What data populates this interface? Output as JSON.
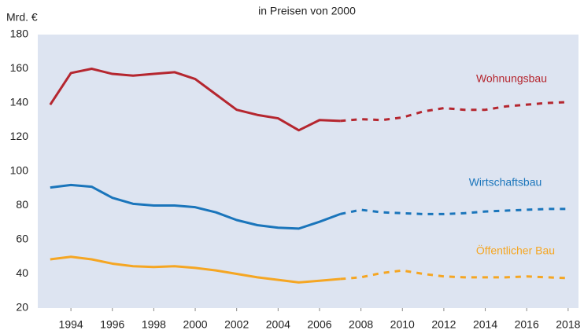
{
  "chart_data": {
    "type": "line",
    "title": "in Preisen von 2000",
    "ylabel": "Mrd. €",
    "x": [
      1993,
      1994,
      1995,
      1996,
      1997,
      1998,
      1999,
      2000,
      2001,
      2002,
      2003,
      2004,
      2005,
      2006,
      2007,
      2008,
      2009,
      2010,
      2011,
      2012,
      2013,
      2014,
      2015,
      2016,
      2017,
      2018
    ],
    "dashed_from": 2007,
    "series": [
      {
        "name": "Wohnungsbau",
        "color": "#b5262f",
        "values": [
          139,
          157.5,
          160,
          157,
          156,
          157,
          158,
          154,
          145,
          136,
          133,
          131,
          124,
          130,
          129.5,
          130.5,
          130,
          131.5,
          135,
          137,
          136,
          136,
          138,
          139,
          140,
          140.5
        ]
      },
      {
        "name": "Wirtschaftsbau",
        "color": "#1a75bb",
        "values": [
          90.5,
          92,
          91,
          84.5,
          81,
          80,
          80,
          79,
          76,
          71.5,
          68.5,
          67,
          66.5,
          70.5,
          75,
          77.5,
          76,
          75.5,
          75,
          75,
          75.5,
          76.5,
          77,
          77.5,
          78,
          78
        ]
      },
      {
        "name": "Öffentlicher Bau",
        "color": "#f5a623",
        "values": [
          48.5,
          50,
          48.5,
          46,
          44.5,
          44,
          44.5,
          43.5,
          42,
          40,
          38,
          36.5,
          35,
          36,
          37,
          38,
          40.5,
          42,
          40,
          38.5,
          38,
          38,
          38,
          38.5,
          38,
          37.5
        ]
      }
    ],
    "xlim": [
      1992.4,
      2018.5
    ],
    "xticks": [
      1994,
      1996,
      1998,
      2000,
      2002,
      2004,
      2006,
      2008,
      2010,
      2012,
      2014,
      2016,
      2018
    ],
    "ylim": [
      20,
      180
    ],
    "yticks": [
      20,
      40,
      60,
      80,
      100,
      120,
      140,
      160,
      180
    ],
    "plot_background": "#dde4f1"
  }
}
